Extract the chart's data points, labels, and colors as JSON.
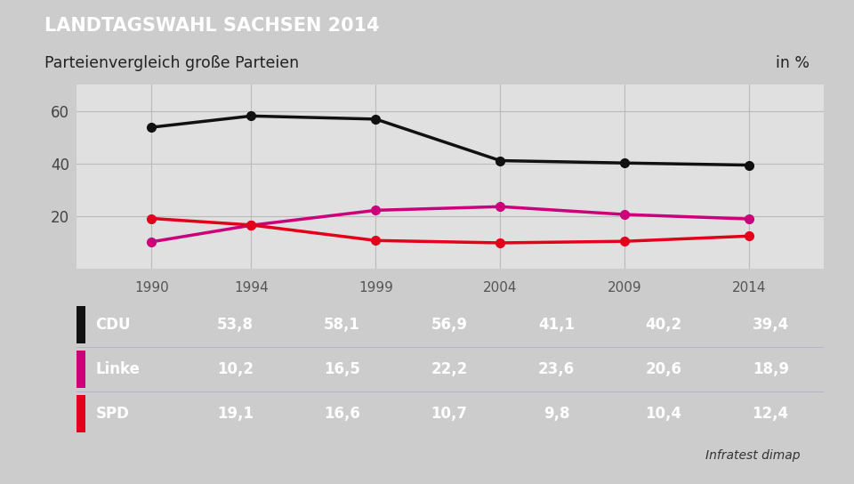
{
  "title": "LANDTAGSWAHL SACHSEN 2014",
  "subtitle": "Parteienvergleich große Parteien",
  "subtitle_right": "in %",
  "source": "Infratest dimap",
  "years": [
    1990,
    1994,
    1999,
    2004,
    2009,
    2014
  ],
  "series": [
    {
      "name": "CDU",
      "values": [
        53.8,
        58.1,
        56.9,
        41.1,
        40.2,
        39.4
      ],
      "color": "#111111",
      "linewidth": 2.5,
      "markersize": 7
    },
    {
      "name": "Linke",
      "values": [
        10.2,
        16.5,
        22.2,
        23.6,
        20.6,
        18.9
      ],
      "color": "#cc007a",
      "linewidth": 2.5,
      "markersize": 7
    },
    {
      "name": "SPD",
      "values": [
        19.1,
        16.6,
        10.7,
        9.8,
        10.4,
        12.4
      ],
      "color": "#e2001a",
      "linewidth": 2.5,
      "markersize": 7
    }
  ],
  "yticks": [
    20,
    40,
    60
  ],
  "ylim": [
    0,
    70
  ],
  "xlim": [
    1987,
    2017
  ],
  "header_bg": "#1a3a7a",
  "header_text_color": "#ffffff",
  "subtitle_bg": "#ffffff",
  "table_header_bg": "#e8e8e8",
  "table_row_bg": "#4a7aaa",
  "table_text_color": "#ffffff",
  "table_header_text_color": "#555555",
  "outer_bg": "#cccccc",
  "plot_bg": "#e0e0e0",
  "grid_color": "#bbbbbb",
  "source_color": "#333333"
}
